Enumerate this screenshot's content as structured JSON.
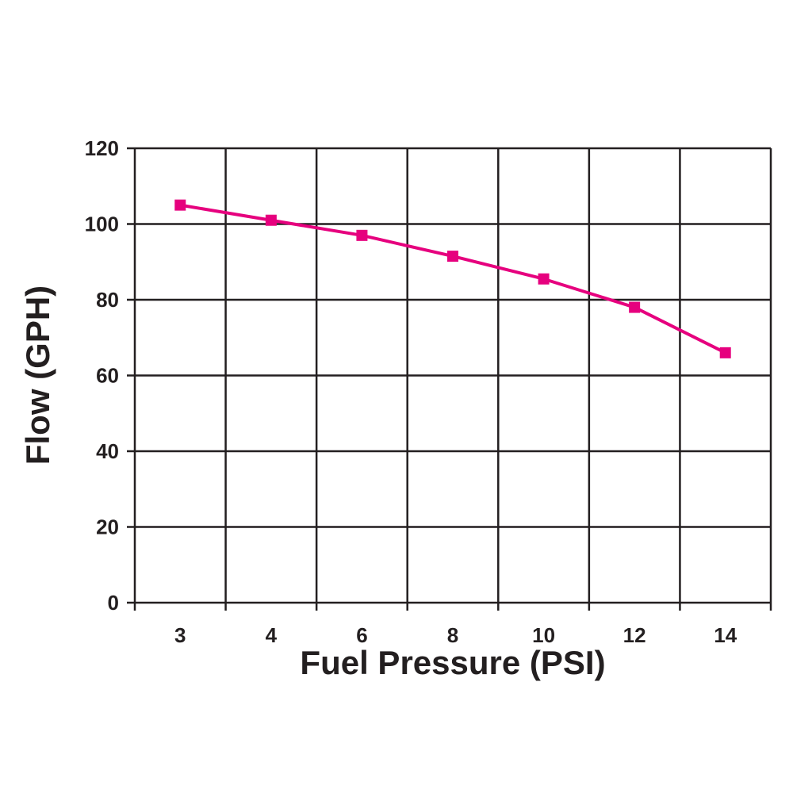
{
  "chart_data": {
    "type": "line",
    "title": "",
    "xlabel": "Fuel Pressure (PSI)",
    "ylabel": "Flow (GPH)",
    "categories": [
      "3",
      "4",
      "6",
      "8",
      "10",
      "12",
      "14"
    ],
    "series": [
      {
        "values": [
          105,
          101,
          97,
          91.5,
          85.5,
          78,
          66
        ]
      }
    ],
    "ylim": [
      0,
      120
    ],
    "yticks": [
      "0",
      "20",
      "40",
      "60",
      "80",
      "100",
      "120"
    ],
    "grid": true,
    "line_color": "#e6007e",
    "grid_color": "#231f20"
  }
}
